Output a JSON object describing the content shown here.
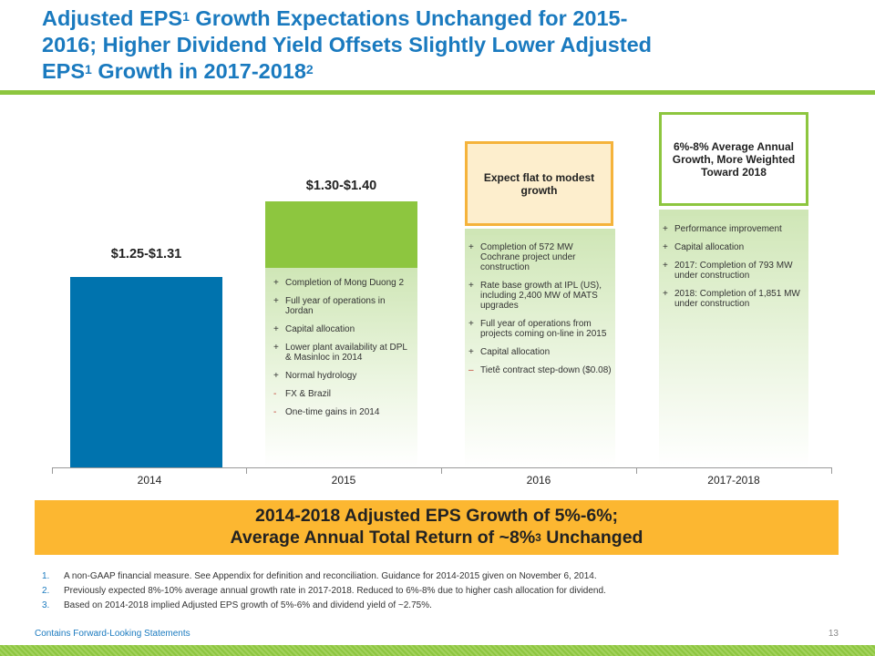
{
  "title": {
    "line1_a": "Adjusted EPS",
    "line1_sup": "1",
    "line1_b": " Growth Expectations Unchanged for 2015-",
    "line2": "2016; Higher Dividend Yield Offsets Slightly Lower Adjusted",
    "line3_a": "EPS",
    "line3_sup": "1",
    "line3_b": " Growth in 2017-2018",
    "line3_sup2": "2"
  },
  "chart_data": {
    "type": "bar",
    "categories": [
      "2014",
      "2015",
      "2016",
      "2017-2018"
    ],
    "value_labels": [
      "$1.25-$1.31",
      "$1.30-$1.40",
      "",
      ""
    ],
    "ranges": [
      [
        1.25,
        1.31
      ],
      [
        1.3,
        1.4
      ],
      null,
      null
    ],
    "callouts": [
      "",
      "",
      "Expect flat to modest growth",
      "6%-8% Average Annual Growth, More Weighted Toward 2018"
    ],
    "drivers": [
      [],
      [
        {
          "sign": "+",
          "text": "Completion of Mong Duong 2"
        },
        {
          "sign": "+",
          "text": "Full year of operations in Jordan"
        },
        {
          "sign": "+",
          "text": "Capital allocation"
        },
        {
          "sign": "+",
          "text": "Lower plant availability at DPL & Masinloc in 2014"
        },
        {
          "sign": "+",
          "text": "Normal hydrology"
        },
        {
          "sign": "-",
          "text": "FX & Brazil"
        },
        {
          "sign": "-",
          "text": "One-time gains in 2014"
        }
      ],
      [
        {
          "sign": "+",
          "text": "Completion of 572 MW Cochrane project under construction"
        },
        {
          "sign": "+",
          "text": "Rate base growth at IPL (US), including 2,400 MW of MATS upgrades"
        },
        {
          "sign": "+",
          "text": "Full year of operations from projects coming on-line in 2015"
        },
        {
          "sign": "+",
          "text": "Capital allocation"
        },
        {
          "sign": "–",
          "text": "Tietê contract step-down ($0.08)"
        }
      ],
      [
        {
          "sign": "+",
          "text": "Performance improvement"
        },
        {
          "sign": "+",
          "text": "Capital allocation"
        },
        {
          "sign": "+",
          "text": "2017: Completion of 793 MW under construction"
        },
        {
          "sign": "+",
          "text": "2018: Completion of 1,851 MW under construction"
        }
      ]
    ],
    "colors": {
      "2014": "#0073ae",
      "2015_increment": "#8dc63f",
      "callout_2016_border": "#f5b33b",
      "callout_2017_border": "#8dc63f"
    }
  },
  "summary": {
    "line1": "2014-2018 Adjusted EPS Growth of 5%-6%;",
    "line2_a": "Average Annual Total Return of ~8%",
    "line2_sup": "3",
    "line2_b": " Unchanged"
  },
  "footnotes": [
    {
      "num": "1.",
      "text": "A non-GAAP financial measure.  See Appendix for definition and reconciliation.  Guidance for 2014-2015 given on November 6, 2014."
    },
    {
      "num": "2.",
      "text": "Previously expected 8%-10% average annual growth rate in 2017-2018.  Reduced to 6%-8% due to higher cash allocation for dividend."
    },
    {
      "num": "3.",
      "text": "Based on 2014-2018  implied Adjusted EPS growth of 5%-6% and dividend yield of ~2.75%."
    }
  ],
  "footer": {
    "label": "Contains Forward-Looking Statements",
    "page": "13"
  },
  "colors": {
    "title": "#1a7abf",
    "accent_green": "#8dc63f",
    "summary_bg": "#fcb731"
  }
}
